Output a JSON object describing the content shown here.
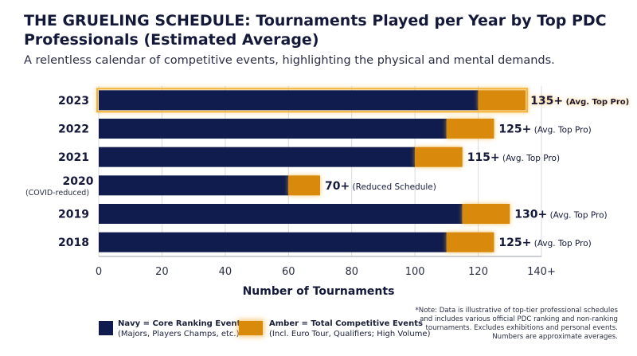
{
  "title": "THE GRUELING SCHEDULE: Tournaments Played per Year by Top PDC Professionals (Estimated Average)",
  "subtitle": "A relentless calendar of competitive events, highlighting the physical and mental demands.",
  "colors": {
    "navy": "#0f1c4d",
    "amber": "#d98a0b",
    "glow": "#f5b234"
  },
  "chart_data": {
    "type": "bar",
    "orientation": "horizontal",
    "stacked": true,
    "xlabel": "Number of Tournaments",
    "ylabel": "",
    "xlim": [
      0,
      140
    ],
    "x_ticks": [
      "0",
      "20",
      "40",
      "60",
      "80",
      "100",
      "120",
      "140+"
    ],
    "grid": "vertical",
    "categories": [
      {
        "label": "2023",
        "sublabel": ""
      },
      {
        "label": "2022",
        "sublabel": ""
      },
      {
        "label": "2021",
        "sublabel": ""
      },
      {
        "label": "2020",
        "sublabel": "(COVID-reduced)"
      },
      {
        "label": "2019",
        "sublabel": ""
      },
      {
        "label": "2018",
        "sublabel": ""
      }
    ],
    "series": [
      {
        "values": [
          120,
          110,
          100,
          60,
          115,
          110
        ]
      },
      {
        "values": [
          15,
          15,
          15,
          10,
          15,
          15
        ]
      }
    ],
    "data_labels": [
      {
        "value": "135+",
        "note": "(Avg. Top Pro)"
      },
      {
        "value": "125+",
        "note": "(Avg. Top Pro)"
      },
      {
        "value": "115+",
        "note": "(Avg. Top Pro)"
      },
      {
        "value": "70+",
        "note": "(Reduced Schedule)"
      },
      {
        "value": "130+",
        "note": "(Avg. Top Pro)"
      },
      {
        "value": "125+",
        "note": "(Avg. Top Pro)"
      }
    ],
    "highlighted_category": "2023"
  },
  "legend": [
    {
      "name": "Navy = Core Ranking Events",
      "detail": "(Majors, Players Champs, etc.)",
      "color": "#0f1c4d"
    },
    {
      "name": "Amber = Total Competitive Events",
      "detail": "(Incl. Euro Tour, Qualifiers; High Volume)",
      "color": "#d98a0b"
    }
  ],
  "note": "*Note: Data is illustrative of top-tier professional schedules and includes various official PDC ranking and non-ranking tournaments. Excludes exhibitions and personal events. Numbers are approximate averages."
}
